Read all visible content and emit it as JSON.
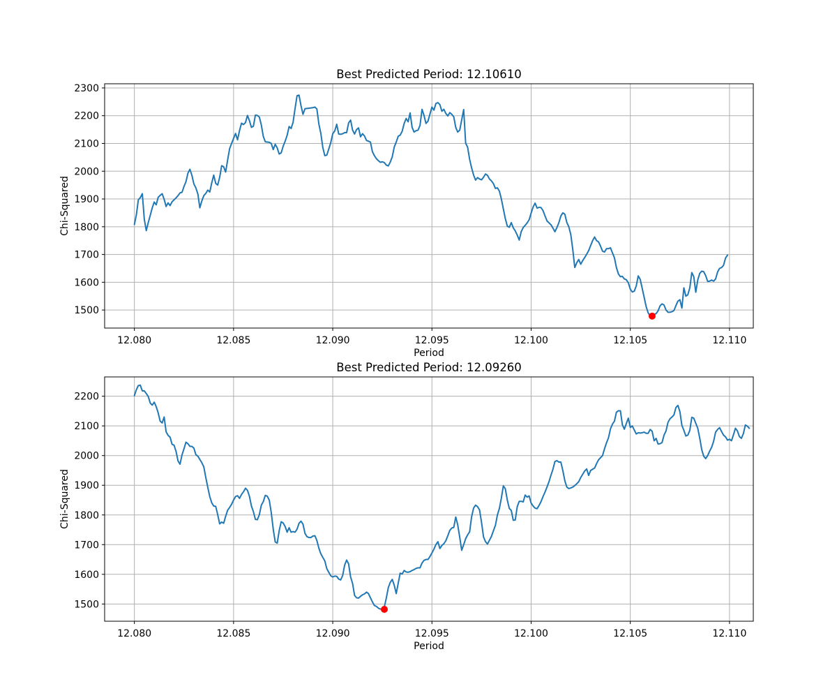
{
  "figure": {
    "background": "#ffffff"
  },
  "chart_data": [
    {
      "type": "line",
      "title": "Best Predicted Period: 12.10610",
      "xlabel": "Period",
      "ylabel": "Chi-Squared",
      "xlim": [
        12.0785,
        12.1112
      ],
      "ylim": [
        1435,
        2315
      ],
      "xticks": [
        12.08,
        12.085,
        12.09,
        12.095,
        12.1,
        12.105,
        12.11
      ],
      "xtick_labels": [
        "12.080",
        "12.085",
        "12.090",
        "12.095",
        "12.100",
        "12.105",
        "12.110"
      ],
      "yticks": [
        1500,
        1600,
        1700,
        1800,
        1900,
        2000,
        2100,
        2200,
        2300
      ],
      "ytick_labels": [
        "1500",
        "1600",
        "1700",
        "1800",
        "1900",
        "2000",
        "2100",
        "2200",
        "2300"
      ],
      "grid": true,
      "line_color": "#1f77b4",
      "marker_color": "#ff0000",
      "x_start": 12.08,
      "x_step": 0.0001,
      "values": [
        1808,
        1843,
        1897,
        1905,
        1919,
        1827,
        1786,
        1815,
        1841,
        1868,
        1889,
        1879,
        1906,
        1913,
        1919,
        1899,
        1873,
        1886,
        1876,
        1890,
        1897,
        1904,
        1912,
        1922,
        1924,
        1945,
        1962,
        1993,
        2007,
        1985,
        1954,
        1940,
        1918,
        1868,
        1893,
        1912,
        1920,
        1932,
        1925,
        1958,
        1986,
        1956,
        1950,
        1978,
        2020,
        2016,
        1997,
        2040,
        2081,
        2100,
        2118,
        2136,
        2113,
        2146,
        2173,
        2168,
        2175,
        2201,
        2182,
        2158,
        2162,
        2202,
        2201,
        2195,
        2166,
        2125,
        2106,
        2105,
        2104,
        2100,
        2078,
        2097,
        2084,
        2062,
        2066,
        2090,
        2108,
        2129,
        2161,
        2154,
        2176,
        2226,
        2272,
        2274,
        2236,
        2205,
        2225,
        2226,
        2227,
        2228,
        2229,
        2231,
        2224,
        2170,
        2136,
        2085,
        2056,
        2058,
        2080,
        2103,
        2135,
        2145,
        2169,
        2134,
        2133,
        2135,
        2139,
        2139,
        2174,
        2184,
        2148,
        2134,
        2150,
        2156,
        2124,
        2135,
        2127,
        2111,
        2108,
        2105,
        2070,
        2056,
        2045,
        2038,
        2032,
        2034,
        2031,
        2022,
        2019,
        2033,
        2052,
        2087,
        2105,
        2126,
        2130,
        2144,
        2172,
        2190,
        2178,
        2210,
        2158,
        2141,
        2146,
        2148,
        2165,
        2223,
        2201,
        2172,
        2180,
        2206,
        2231,
        2220,
        2244,
        2247,
        2240,
        2216,
        2223,
        2208,
        2199,
        2211,
        2205,
        2196,
        2158,
        2141,
        2148,
        2185,
        2222,
        2101,
        2086,
        2043,
        2012,
        1986,
        1968,
        1977,
        1972,
        1969,
        1978,
        1990,
        1985,
        1972,
        1965,
        1955,
        1938,
        1940,
        1928,
        1900,
        1864,
        1829,
        1802,
        1798,
        1815,
        1796,
        1785,
        1770,
        1752,
        1782,
        1797,
        1805,
        1814,
        1825,
        1849,
        1871,
        1885,
        1867,
        1870,
        1869,
        1858,
        1839,
        1821,
        1814,
        1807,
        1795,
        1782,
        1797,
        1815,
        1839,
        1850,
        1845,
        1815,
        1800,
        1772,
        1718,
        1653,
        1670,
        1682,
        1665,
        1678,
        1689,
        1701,
        1714,
        1732,
        1750,
        1763,
        1750,
        1745,
        1730,
        1712,
        1709,
        1721,
        1721,
        1724,
        1706,
        1688,
        1653,
        1630,
        1620,
        1621,
        1612,
        1609,
        1598,
        1575,
        1565,
        1568,
        1587,
        1623,
        1610,
        1578,
        1545,
        1512,
        1490,
        1478,
        1482,
        1484,
        1487,
        1497,
        1515,
        1522,
        1518,
        1500,
        1492,
        1492,
        1494,
        1498,
        1516,
        1532,
        1537,
        1507,
        1580,
        1550,
        1555,
        1580,
        1635,
        1620,
        1564,
        1608,
        1632,
        1640,
        1638,
        1624,
        1603,
        1604,
        1608,
        1604,
        1612,
        1637,
        1650,
        1653,
        1661,
        1687,
        1698
      ],
      "min_point": {
        "x": 12.1061,
        "y": 1478
      }
    },
    {
      "type": "line",
      "title": "Best Predicted Period: 12.09260",
      "xlabel": "Period",
      "ylabel": "Chi-Squared",
      "xlim": [
        12.0785,
        12.1112
      ],
      "ylim": [
        1442,
        2265
      ],
      "xticks": [
        12.08,
        12.085,
        12.09,
        12.095,
        12.1,
        12.105,
        12.11
      ],
      "xtick_labels": [
        "12.080",
        "12.085",
        "12.090",
        "12.095",
        "12.100",
        "12.105",
        "12.110"
      ],
      "yticks": [
        1500,
        1600,
        1700,
        1800,
        1900,
        2000,
        2100,
        2200
      ],
      "ytick_labels": [
        "1500",
        "1600",
        "1700",
        "1800",
        "1900",
        "2000",
        "2100",
        "2200"
      ],
      "grid": true,
      "line_color": "#1f77b4",
      "marker_color": "#ff0000",
      "x_start": 12.08,
      "x_step": 0.0001,
      "values": [
        2202,
        2222,
        2236,
        2237,
        2218,
        2218,
        2209,
        2199,
        2177,
        2170,
        2180,
        2165,
        2144,
        2116,
        2110,
        2130,
        2080,
        2068,
        2062,
        2038,
        2035,
        2014,
        1982,
        1971,
        2002,
        2023,
        2045,
        2040,
        2031,
        2031,
        2025,
        2003,
        1998,
        1987,
        1976,
        1962,
        1926,
        1893,
        1862,
        1841,
        1830,
        1829,
        1801,
        1770,
        1776,
        1772,
        1795,
        1816,
        1825,
        1836,
        1850,
        1862,
        1865,
        1856,
        1869,
        1878,
        1890,
        1883,
        1863,
        1830,
        1811,
        1785,
        1784,
        1801,
        1833,
        1845,
        1866,
        1863,
        1850,
        1808,
        1752,
        1709,
        1705,
        1747,
        1777,
        1773,
        1761,
        1742,
        1757,
        1742,
        1744,
        1742,
        1752,
        1772,
        1779,
        1769,
        1738,
        1727,
        1724,
        1724,
        1729,
        1730,
        1714,
        1688,
        1669,
        1657,
        1645,
        1619,
        1607,
        1595,
        1591,
        1594,
        1593,
        1584,
        1581,
        1596,
        1631,
        1648,
        1635,
        1591,
        1569,
        1529,
        1521,
        1520,
        1526,
        1531,
        1534,
        1540,
        1535,
        1521,
        1507,
        1495,
        1492,
        1486,
        1483,
        1482,
        1490,
        1520,
        1555,
        1573,
        1583,
        1563,
        1535,
        1570,
        1604,
        1601,
        1613,
        1608,
        1607,
        1609,
        1613,
        1616,
        1620,
        1622,
        1622,
        1638,
        1647,
        1650,
        1650,
        1660,
        1672,
        1685,
        1700,
        1710,
        1687,
        1697,
        1703,
        1713,
        1730,
        1748,
        1756,
        1758,
        1793,
        1767,
        1725,
        1681,
        1700,
        1720,
        1733,
        1743,
        1794,
        1823,
        1833,
        1828,
        1817,
        1775,
        1726,
        1710,
        1702,
        1715,
        1728,
        1747,
        1765,
        1800,
        1822,
        1857,
        1898,
        1888,
        1850,
        1822,
        1815,
        1782,
        1783,
        1828,
        1846,
        1846,
        1844,
        1867,
        1860,
        1864,
        1840,
        1830,
        1823,
        1821,
        1832,
        1845,
        1862,
        1877,
        1894,
        1912,
        1934,
        1954,
        1980,
        1983,
        1978,
        1978,
        1949,
        1915,
        1894,
        1889,
        1891,
        1894,
        1899,
        1905,
        1912,
        1926,
        1937,
        1948,
        1955,
        1933,
        1950,
        1954,
        1958,
        1973,
        1986,
        1993,
        2000,
        2023,
        2043,
        2060,
        2090,
        2106,
        2116,
        2146,
        2151,
        2151,
        2104,
        2089,
        2108,
        2126,
        2095,
        2100,
        2086,
        2073,
        2077,
        2076,
        2077,
        2079,
        2075,
        2075,
        2088,
        2082,
        2050,
        2058,
        2039,
        2040,
        2044,
        2069,
        2083,
        2112,
        2124,
        2130,
        2137,
        2162,
        2169,
        2148,
        2102,
        2085,
        2066,
        2069,
        2085,
        2129,
        2126,
        2109,
        2092,
        2059,
        2020,
        1998,
        1990,
        2000,
        2015,
        2028,
        2048,
        2079,
        2088,
        2094,
        2081,
        2069,
        2063,
        2052,
        2055,
        2050,
        2070,
        2092,
        2083,
        2064,
        2058,
        2074,
        2103,
        2099,
        2092
      ],
      "min_point": {
        "x": 12.0926,
        "y": 1482
      }
    }
  ]
}
